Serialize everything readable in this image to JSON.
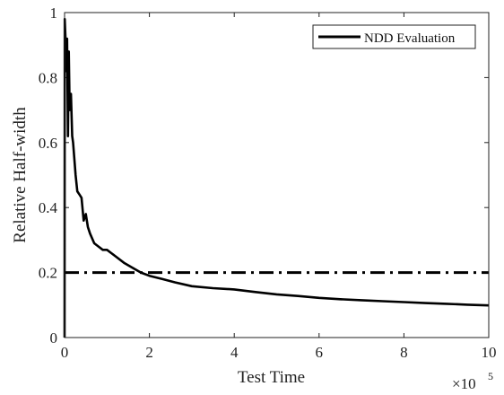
{
  "chart_data": {
    "type": "line",
    "xlabel": "Test Time",
    "ylabel": "Relative Half-width",
    "x_multiplier_label": {
      "base": "×10",
      "exponent": "5"
    },
    "xlim": [
      0,
      10
    ],
    "ylim": [
      0,
      1
    ],
    "x_ticks": [
      0,
      2,
      4,
      6,
      8,
      10
    ],
    "y_ticks": [
      0,
      0.2,
      0.4,
      0.6,
      0.8,
      1
    ],
    "grid": false,
    "legend_position": "top-right",
    "series": [
      {
        "name": "NDD Evaluation",
        "style": "solid",
        "color": "#000000",
        "x": [
          0,
          0.005,
          0.02,
          0.04,
          0.06,
          0.08,
          0.1,
          0.12,
          0.15,
          0.18,
          0.2,
          0.23,
          0.26,
          0.3,
          0.35,
          0.4,
          0.45,
          0.5,
          0.55,
          0.6,
          0.7,
          0.8,
          0.9,
          1.0,
          1.1,
          1.2,
          1.4,
          1.6,
          1.8,
          2.0,
          2.3,
          2.6,
          3.0,
          3.5,
          4.0,
          4.5,
          5.0,
          5.5,
          6.0,
          6.5,
          7.0,
          7.5,
          8.0,
          8.5,
          9.0,
          9.5,
          10.0
        ],
        "y": [
          0,
          0.98,
          0.93,
          0.82,
          0.92,
          0.62,
          0.88,
          0.7,
          0.75,
          0.62,
          0.6,
          0.55,
          0.5,
          0.45,
          0.44,
          0.43,
          0.36,
          0.38,
          0.34,
          0.32,
          0.29,
          0.28,
          0.27,
          0.27,
          0.26,
          0.25,
          0.23,
          0.215,
          0.2,
          0.19,
          0.18,
          0.17,
          0.158,
          0.152,
          0.148,
          0.14,
          0.133,
          0.128,
          0.122,
          0.118,
          0.115,
          0.112,
          0.109,
          0.106,
          0.104,
          0.101,
          0.099
        ]
      },
      {
        "style": "dash-dot",
        "color": "#000000",
        "x": [
          0,
          10
        ],
        "y": [
          0.2,
          0.2
        ]
      }
    ]
  }
}
